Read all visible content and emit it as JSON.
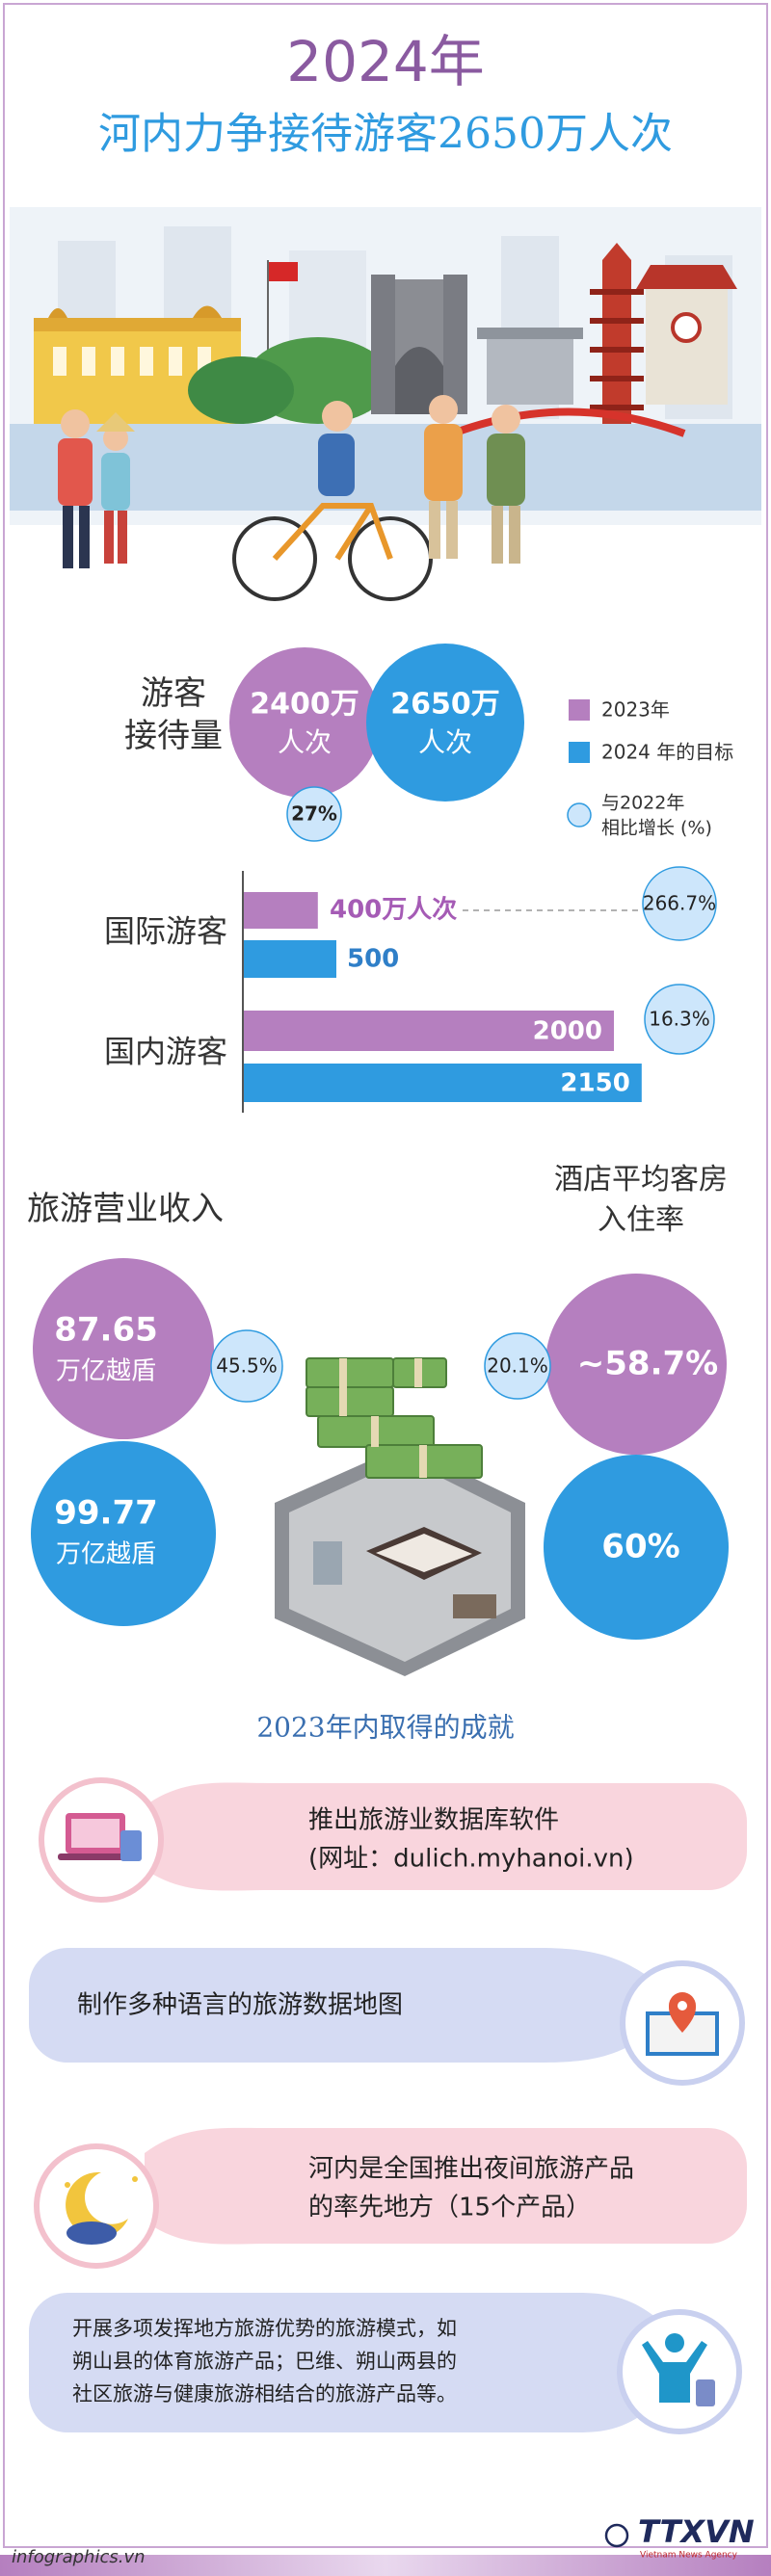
{
  "header": {
    "year": "2024年",
    "title": "河内力争接待游客2650万人次"
  },
  "visitors": {
    "label": [
      "游客",
      "接待量"
    ],
    "y2023": [
      "2400万",
      "人次"
    ],
    "y2024": [
      "2650万",
      "人次"
    ],
    "growth": "27%",
    "legend": {
      "y2023": "2023年",
      "y2024": "2024 年的目标",
      "growth": [
        "与2022年",
        "相比增长 (%)"
      ]
    }
  },
  "bars": [
    {
      "label": "国际游客",
      "values": [
        400,
        500
      ],
      "value_labels": [
        "400万人次",
        "500"
      ],
      "growth": "266.7%"
    },
    {
      "label": "国内游客",
      "values": [
        2000,
        2150
      ],
      "growth": "16.3%"
    }
  ],
  "revenue": {
    "title": "旅游营业收入",
    "y2023": {
      "amount": "87.65",
      "unit": "万亿越盾"
    },
    "y2024": {
      "amount": "99.77",
      "unit": "万亿越盾"
    },
    "growth": "45.5%"
  },
  "occupancy": {
    "title": [
      "酒店平均客房",
      "入住率"
    ],
    "y2023": "~58.7%",
    "y2024": "60%",
    "growth": "20.1%"
  },
  "achievements": {
    "title": "2023年内取得的成就",
    "items": [
      [
        "推出旅游业数据库软件",
        "(网址：dulich.myhanoi.vn)"
      ],
      [
        "制作多种语言的旅游数据地图"
      ],
      [
        "河内是全国推出夜间旅游产品",
        "的率先地方（15个产品）"
      ],
      [
        "开展多项发挥地方旅游优势的旅游模式，如",
        "朔山县的体育旅游产品；巴维、朔山两县的",
        "社区旅游与健康旅游相结合的旅游产品等。"
      ]
    ]
  },
  "footer": {
    "site": "infographics.vn",
    "logo": "TTXVN",
    "agency": "Vietnam News Agency"
  }
}
